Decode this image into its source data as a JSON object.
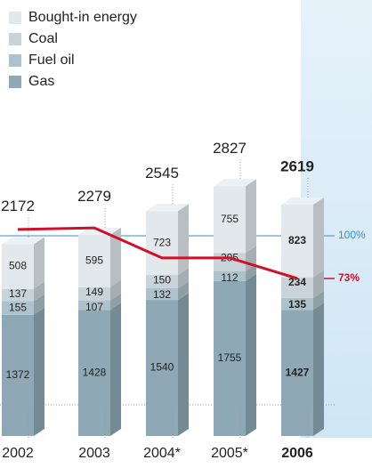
{
  "chart_data": {
    "type": "stacked-bar-3d",
    "categories": [
      "2002",
      "2003",
      "2004*",
      "2005*",
      "2006"
    ],
    "bold_category": "2006",
    "series": [
      {
        "name": "Gas",
        "color": "#8ea8b5",
        "values": [
          1372,
          1428,
          1540,
          1755,
          1427
        ]
      },
      {
        "name": "Fuel oil",
        "color": "#adc2cb",
        "values": [
          155,
          107,
          132,
          112,
          135
        ]
      },
      {
        "name": "Coal",
        "color": "#c8d4da",
        "values": [
          137,
          149,
          150,
          205,
          234
        ]
      },
      {
        "name": "Bought-in energy",
        "color": "#e2e8ec",
        "values": [
          508,
          595,
          723,
          755,
          823
        ]
      }
    ],
    "totals": [
      2172,
      2279,
      2545,
      2827,
      2619
    ],
    "line": {
      "color": "#d0102a",
      "axis": "y2",
      "values": [
        104,
        105,
        86,
        86,
        73
      ]
    },
    "ylim": [
      0,
      3525
    ],
    "y2lim": [
      -26.6,
      170.3
    ],
    "y2ticks": [
      {
        "value": 100,
        "label": "100%"
      },
      {
        "value": 73,
        "label": "73%"
      }
    ],
    "y2tick_colors": [
      "#3a8fc8",
      "#d0102a"
    ]
  }
}
